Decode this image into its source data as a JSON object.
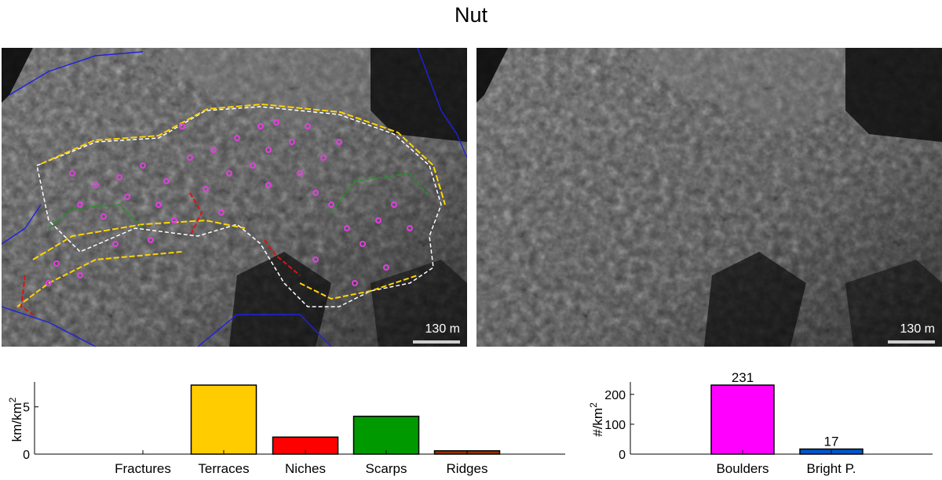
{
  "title": "Nut",
  "images": {
    "left": {
      "scale_label": "130 m",
      "overlay_legend_colors": [
        "#ffd400",
        "#ff0000",
        "#1a9a1a",
        "#ffffff",
        "#2020e0",
        "#e040e0"
      ]
    },
    "right": {
      "scale_label": "130 m"
    }
  },
  "chart_data": [
    {
      "type": "bar",
      "categories": [
        "Fractures",
        "Terraces",
        "Niches",
        "Scarps",
        "Ridges"
      ],
      "values": [
        0,
        7.3,
        1.8,
        4.0,
        0.35
      ],
      "colors": [
        "#ffffff",
        "#ffcc00",
        "#ff0000",
        "#009900",
        "#993300"
      ],
      "ylabel": "km/km",
      "ylabel_superscript": "2",
      "yticks": [
        0,
        5
      ],
      "ylim": [
        0,
        7.3
      ]
    },
    {
      "type": "bar",
      "categories": [
        "Boulders",
        "Bright P."
      ],
      "values": [
        231,
        17
      ],
      "data_labels": [
        "231",
        "17"
      ],
      "colors": [
        "#ff00ff",
        "#0055cc"
      ],
      "ylabel": "#/km",
      "ylabel_superscript": "2",
      "yticks": [
        0,
        100,
        200
      ],
      "ylim": [
        0,
        231
      ]
    }
  ]
}
